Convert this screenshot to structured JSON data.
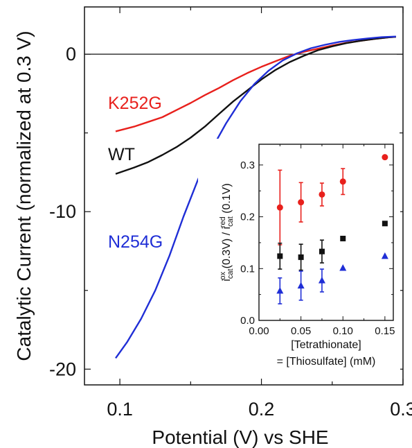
{
  "chart_data": [
    {
      "type": "line",
      "title": "",
      "xlabel": "Potential (V) vs SHE",
      "ylabel": "Catalytic Current (normalized at 0.3 V)",
      "xlim": [
        0.075,
        0.3
      ],
      "ylim": [
        -21,
        3
      ],
      "xticks": [
        {
          "value": 0.1,
          "label": "0.1"
        },
        {
          "value": 0.2,
          "label": "0.2"
        },
        {
          "value": 0.3,
          "label": "0.3"
        }
      ],
      "yticks": [
        {
          "value": 0,
          "label": "0"
        },
        {
          "value": -10,
          "label": "-10"
        },
        {
          "value": -20,
          "label": "-20"
        }
      ],
      "reference_line": 0,
      "grid": false,
      "series": [
        {
          "name": "K252G",
          "color": "#e8201c",
          "x": [
            0.097,
            0.11,
            0.12,
            0.13,
            0.14,
            0.15,
            0.16,
            0.17,
            0.18,
            0.19,
            0.2,
            0.21,
            0.22,
            0.23,
            0.24,
            0.25,
            0.26,
            0.27,
            0.28,
            0.29,
            0.295
          ],
          "y": [
            -4.9,
            -4.6,
            -4.3,
            -4.0,
            -3.55,
            -3.1,
            -2.6,
            -2.15,
            -1.65,
            -1.2,
            -0.8,
            -0.45,
            -0.1,
            0.15,
            0.35,
            0.55,
            0.72,
            0.85,
            0.97,
            1.07,
            1.1
          ]
        },
        {
          "name": "WT",
          "color": "#111111",
          "x": [
            0.097,
            0.11,
            0.12,
            0.13,
            0.14,
            0.15,
            0.16,
            0.17,
            0.18,
            0.19,
            0.2,
            0.21,
            0.22,
            0.23,
            0.24,
            0.25,
            0.26,
            0.27,
            0.28,
            0.29,
            0.295
          ],
          "y": [
            -7.6,
            -7.2,
            -6.85,
            -6.4,
            -5.9,
            -5.3,
            -4.6,
            -3.8,
            -3.0,
            -2.3,
            -1.6,
            -1.0,
            -0.5,
            -0.1,
            0.25,
            0.5,
            0.7,
            0.85,
            0.97,
            1.07,
            1.1
          ]
        },
        {
          "name": "N254G",
          "color": "#1f2ed6",
          "x": [
            0.097,
            0.105,
            0.115,
            0.125,
            0.135,
            0.145,
            0.155,
            0.165,
            0.175,
            0.185,
            0.195,
            0.205,
            0.215,
            0.225,
            0.235,
            0.245,
            0.255,
            0.265,
            0.275,
            0.285,
            0.295
          ],
          "y": [
            -19.3,
            -18.3,
            -16.8,
            -15.0,
            -12.8,
            -10.3,
            -8.0,
            -6.0,
            -4.4,
            -3.0,
            -1.9,
            -1.05,
            -0.4,
            0.05,
            0.38,
            0.6,
            0.78,
            0.9,
            1.0,
            1.08,
            1.12
          ]
        }
      ],
      "annotations": [
        {
          "text": "K252G",
          "color": "#e8201c"
        },
        {
          "text": "WT",
          "color": "#111111"
        },
        {
          "text": "N254G",
          "color": "#1f2ed6"
        }
      ]
    },
    {
      "type": "scatter",
      "title": "",
      "xlabel_line1": "[Tetrathionate]",
      "xlabel_line2": "= [Thiosulfate] (mM)",
      "ylabel": {
        "base": "i",
        "sub1": "cat",
        "sup1": "ox",
        "mid": " (0.3V) / i",
        "sub2": "cat",
        "sup2": "red",
        "tail": " (0.1V)"
      },
      "xlim": [
        0,
        0.16
      ],
      "ylim": [
        0,
        0.34
      ],
      "xticks": [
        {
          "value": 0,
          "label": "0.00"
        },
        {
          "value": 0.05,
          "label": "0.05"
        },
        {
          "value": 0.1,
          "label": "0.10"
        },
        {
          "value": 0.15,
          "label": "0.15"
        }
      ],
      "yticks": [
        {
          "value": 0,
          "label": "0.0"
        },
        {
          "value": 0.1,
          "label": "0.1"
        },
        {
          "value": 0.2,
          "label": "0.2"
        },
        {
          "value": 0.3,
          "label": "0.3"
        }
      ],
      "grid": false,
      "series": [
        {
          "marker": "circle",
          "color": "#e8201c",
          "x": [
            0.025,
            0.05,
            0.075,
            0.1,
            0.15
          ],
          "y": [
            0.218,
            0.228,
            0.243,
            0.268,
            0.315
          ],
          "err": [
            0.072,
            0.038,
            0.022,
            0.025,
            0
          ]
        },
        {
          "marker": "square",
          "color": "#111111",
          "x": [
            0.025,
            0.05,
            0.075,
            0.1,
            0.15
          ],
          "y": [
            0.124,
            0.122,
            0.133,
            0.158,
            0.187
          ],
          "err": [
            0.025,
            0.025,
            0.022,
            0,
            0
          ]
        },
        {
          "marker": "triangle",
          "color": "#1f2ed6",
          "x": [
            0.025,
            0.05,
            0.075,
            0.1,
            0.15
          ],
          "y": [
            0.057,
            0.067,
            0.077,
            0.101,
            0.124
          ],
          "err": [
            0.025,
            0.028,
            0.022,
            0,
            0
          ]
        }
      ]
    }
  ]
}
